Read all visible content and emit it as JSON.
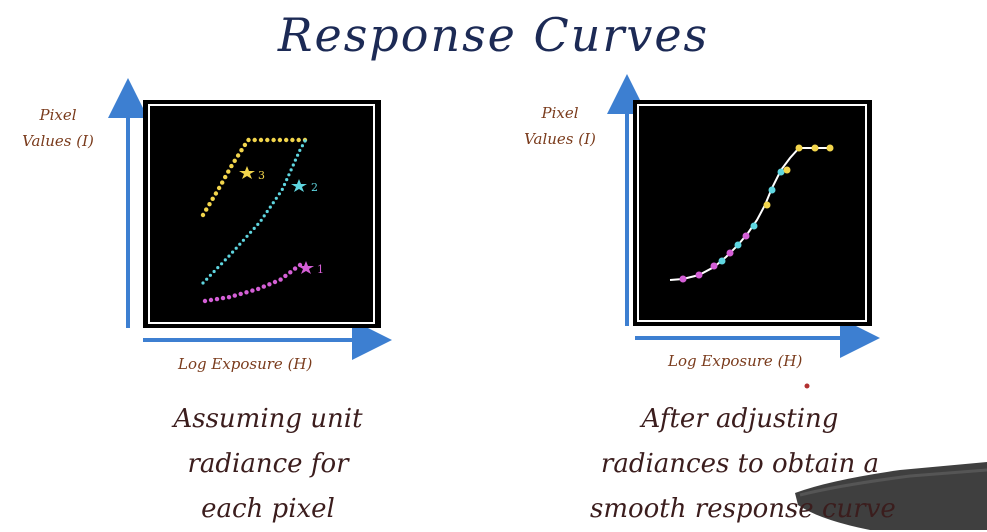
{
  "title": "Response Curves",
  "colors": {
    "axis": "#3d7fd1",
    "yellow": "#f2d54c",
    "cyan": "#5fd6e0",
    "magenta": "#d45fd6",
    "frame": "#000000",
    "title": "#1c2a55",
    "label": "#7a3b1c"
  },
  "left": {
    "ylabel_line1": "Pixel",
    "ylabel_line2": "Values (I)",
    "xlabel": "Log Exposure (H)",
    "markers": [
      "3",
      "2",
      "1"
    ],
    "caption": [
      "Assuming unit",
      "radiance for",
      "each  pixel"
    ]
  },
  "right": {
    "ylabel_line1": "Pixel",
    "ylabel_line2": "Values (I)",
    "xlabel": "Log Exposure (H)",
    "caption": [
      "After adjusting",
      "radiances to obtain a",
      "smooth response curve"
    ]
  }
}
